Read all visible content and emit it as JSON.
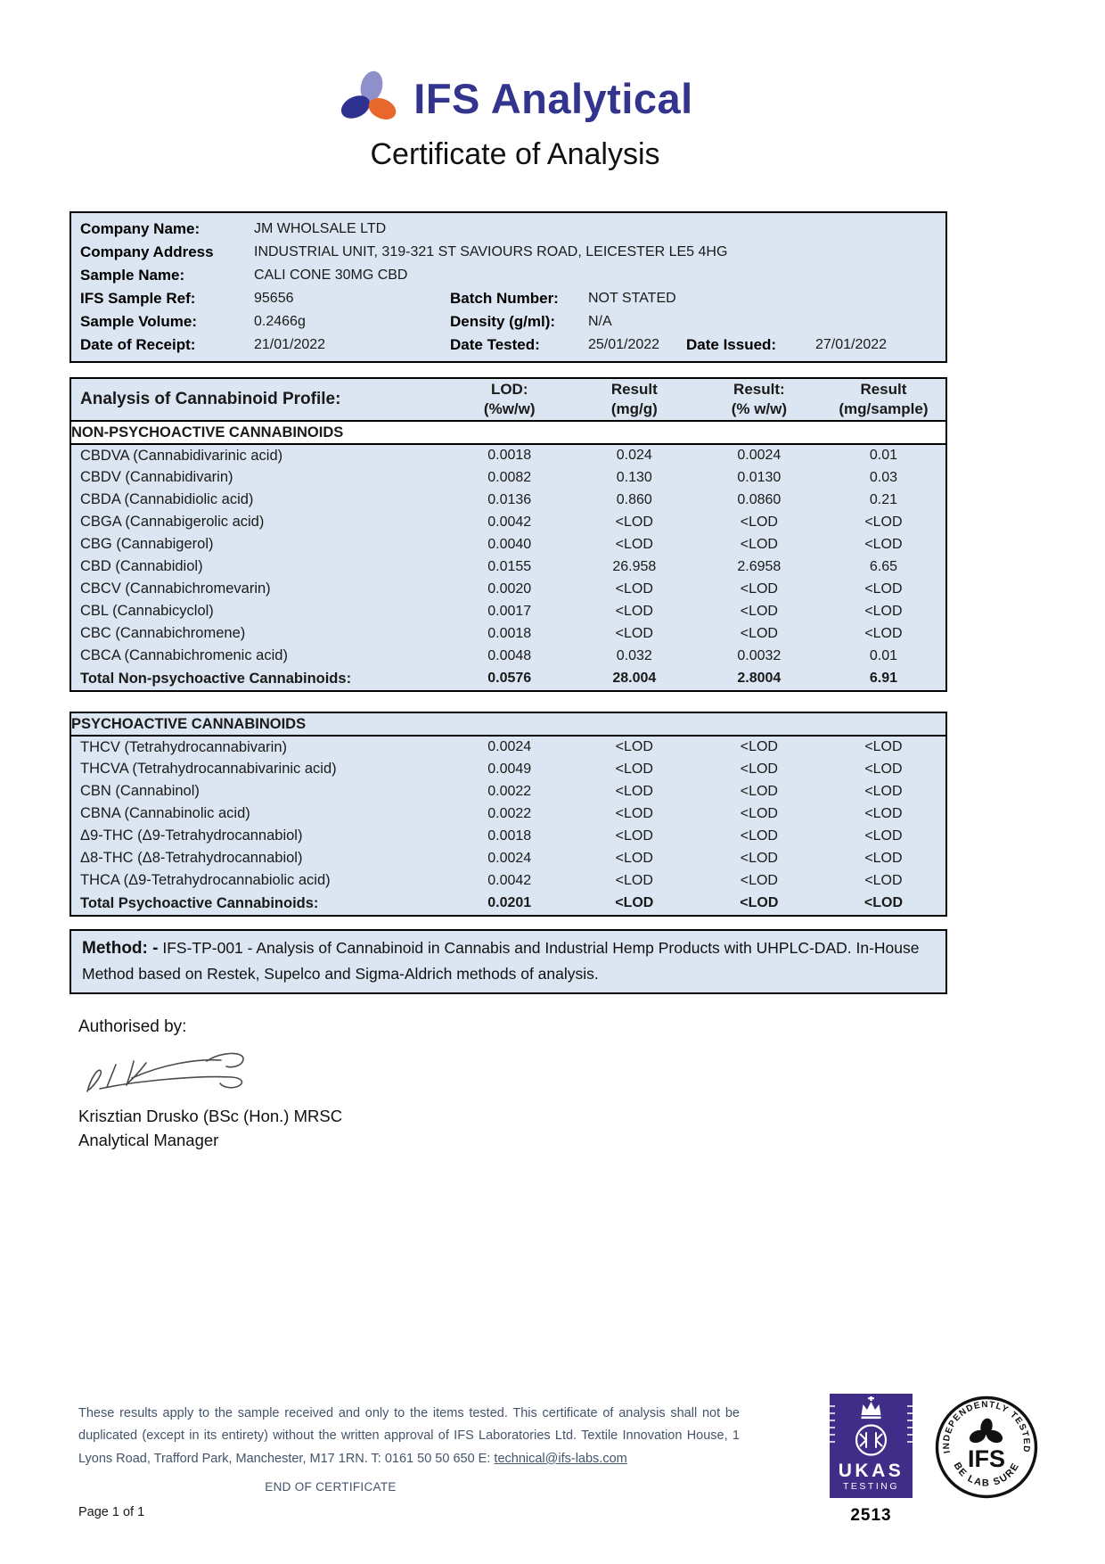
{
  "colors": {
    "brand_navy": "#33348e",
    "logo_lavender": "#8f8fcc",
    "logo_orange": "#e8682c",
    "table_blue": "#dce6f2",
    "ukas_purple": "#402d87",
    "footer_text": "#44546a"
  },
  "header": {
    "brand": "IFS Analytical",
    "logo_icon": "trefoil-ellipses-icon",
    "title": "Certificate of Analysis"
  },
  "sample_info": {
    "rows": [
      {
        "pairs": [
          [
            "Company Name:",
            "JM WHOLSALE LTD"
          ]
        ]
      },
      {
        "pairs": [
          [
            "Company Address",
            "INDUSTRIAL UNIT, 319-321 ST SAVIOURS ROAD, LEICESTER LE5 4HG"
          ]
        ]
      },
      {
        "pairs": [
          [
            "Sample Name:",
            "CALI CONE 30MG CBD"
          ]
        ]
      },
      {
        "pairs": [
          [
            "IFS Sample Ref:",
            "95656"
          ],
          [
            "Batch Number:",
            "NOT STATED"
          ]
        ]
      },
      {
        "pairs": [
          [
            "Sample Volume:",
            "0.2466g"
          ],
          [
            "Density (g/ml):",
            "N/A"
          ]
        ]
      },
      {
        "pairs": [
          [
            "Date of Receipt:",
            "21/01/2022"
          ],
          [
            "Date Tested:",
            "25/01/2022"
          ],
          [
            "Date Issued:",
            "27/01/2022"
          ]
        ]
      }
    ]
  },
  "analysis": {
    "title": "Analysis of Cannabinoid Profile:",
    "columns": [
      [
        "LOD:",
        "(%w/w)"
      ],
      [
        "Result",
        "(mg/g)"
      ],
      [
        "Result:",
        "(% w/w)"
      ],
      [
        "Result",
        "(mg/sample)"
      ]
    ],
    "non_psychoactive": {
      "section": "NON-PSYCHOACTIVE CANNABINOIDS",
      "rows": [
        [
          "CBDVA (Cannabidivarinic acid)",
          "0.0018",
          "0.024",
          "0.0024",
          "0.01"
        ],
        [
          "CBDV (Cannabidivarin)",
          "0.0082",
          "0.130",
          "0.0130",
          "0.03"
        ],
        [
          "CBDA (Cannabidiolic acid)",
          "0.0136",
          "0.860",
          "0.0860",
          "0.21"
        ],
        [
          "CBGA (Cannabigerolic acid)",
          "0.0042",
          "<LOD",
          "<LOD",
          "<LOD"
        ],
        [
          "CBG (Cannabigerol)",
          "0.0040",
          "<LOD",
          "<LOD",
          "<LOD"
        ],
        [
          "CBD (Cannabidiol)",
          "0.0155",
          "26.958",
          "2.6958",
          "6.65"
        ],
        [
          "CBCV (Cannabichromevarin)",
          "0.0020",
          "<LOD",
          "<LOD",
          "<LOD"
        ],
        [
          "CBL (Cannabicyclol)",
          "0.0017",
          "<LOD",
          "<LOD",
          "<LOD"
        ],
        [
          "CBC (Cannabichromene)",
          "0.0018",
          "<LOD",
          "<LOD",
          "<LOD"
        ],
        [
          "CBCA (Cannabichromenic acid)",
          "0.0048",
          "0.032",
          "0.0032",
          "0.01"
        ]
      ],
      "total": [
        "Total Non-psychoactive Cannabinoids:",
        "0.0576",
        "28.004",
        "2.8004",
        "6.91"
      ]
    },
    "psychoactive": {
      "section": "PSYCHOACTIVE CANNABINOIDS",
      "rows": [
        [
          "THCV (Tetrahydrocannabivarin)",
          "0.0024",
          "<LOD",
          "<LOD",
          "<LOD"
        ],
        [
          "THCVA (Tetrahydrocannabivarinic acid)",
          "0.0049",
          "<LOD",
          "<LOD",
          "<LOD"
        ],
        [
          "CBN (Cannabinol)",
          "0.0022",
          "<LOD",
          "<LOD",
          "<LOD"
        ],
        [
          "CBNA (Cannabinolic acid)",
          "0.0022",
          "<LOD",
          "<LOD",
          "<LOD"
        ],
        [
          "Δ9-THC (Δ9-Tetrahydrocannabiol)",
          "0.0018",
          "<LOD",
          "<LOD",
          "<LOD"
        ],
        [
          "Δ8-THC (Δ8-Tetrahydrocannabiol)",
          "0.0024",
          "<LOD",
          "<LOD",
          "<LOD"
        ],
        [
          "THCA (Δ9-Tetrahydrocannabiolic acid)",
          "0.0042",
          "<LOD",
          "<LOD",
          "<LOD"
        ]
      ],
      "total": [
        "Total Psychoactive Cannabinoids:",
        "0.0201",
        "<LOD",
        "<LOD",
        "<LOD"
      ]
    }
  },
  "method": {
    "label": "Method: -",
    "text": " IFS-TP-001 - Analysis of Cannabinoid in Cannabis and Industrial Hemp Products with UHPLC-DAD. In-House Method based on Restek, Supelco and Sigma-Aldrich methods of analysis."
  },
  "authorisation": {
    "label": "Authorised by:",
    "signature_icon": "handwritten-signature",
    "name": "Krisztian Drusko (BSc (Hon.) MRSC",
    "title": "Analytical Manager"
  },
  "footer": {
    "disclaimer_prefix": "These results apply to the sample received and only to the items tested. This certificate of analysis shall not be duplicated (except in its entirety) without the written approval of IFS Laboratories Ltd. Textile Innovation House, 1 Lyons Road, Trafford Park, Manchester, M17 1RN. T: 0161 50 50 650 E: ",
    "email": "technical@ifs-labs.com",
    "end_text": "END OF CERTIFICATE",
    "page_number": "Page 1 of 1",
    "ukas": {
      "crown_icon": "crown-icon",
      "name": "UKAS",
      "sub": "TESTING",
      "number": "2513"
    },
    "stamp": {
      "arc_top": "INDEPENDENTLY TESTED",
      "center": "IFS",
      "arc_bottom": "BE LAB SURE"
    }
  }
}
